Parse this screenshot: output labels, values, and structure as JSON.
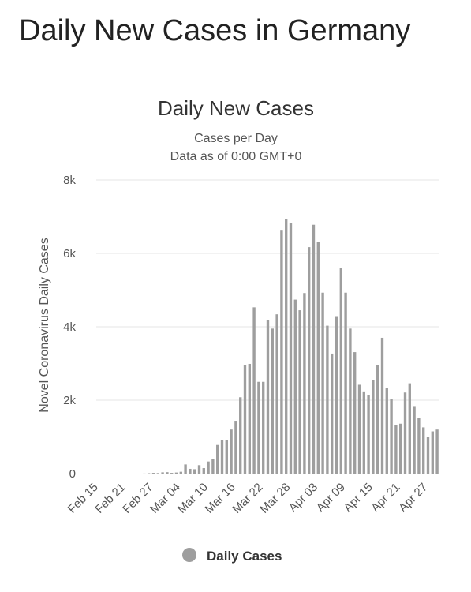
{
  "page": {
    "title": "Daily New Cases in Germany"
  },
  "chart_data": {
    "type": "bar",
    "title": "Daily New Cases",
    "subtitle": "Cases per Day",
    "subtitle2": "Data as of 0:00 GMT+0",
    "ylabel": "Novel Coronavirus Daily Cases",
    "xlabel": "",
    "ylim": [
      0,
      8000
    ],
    "yticks": [
      0,
      2000,
      4000,
      6000,
      8000
    ],
    "ytick_labels": [
      "0",
      "2k",
      "4k",
      "6k",
      "8k"
    ],
    "xtick_labels": [
      "Feb 15",
      "Feb 21",
      "Feb 27",
      "Mar 04",
      "Mar 10",
      "Mar 16",
      "Mar 22",
      "Mar 28",
      "Apr 03",
      "Apr 09",
      "Apr 15",
      "Apr 21",
      "Apr 27"
    ],
    "xtick_every": 6,
    "grid": true,
    "legend_position": "bottom-center",
    "colors": {
      "bar": "#9e9e9e",
      "grid": "#e6e6e6",
      "axis": "#ccd6eb"
    },
    "series": [
      {
        "name": "Daily Cases",
        "categories": [
          "Feb 15",
          "Feb 16",
          "Feb 17",
          "Feb 18",
          "Feb 19",
          "Feb 20",
          "Feb 21",
          "Feb 22",
          "Feb 23",
          "Feb 24",
          "Feb 25",
          "Feb 26",
          "Feb 27",
          "Feb 28",
          "Feb 29",
          "Mar 01",
          "Mar 02",
          "Mar 03",
          "Mar 04",
          "Mar 05",
          "Mar 06",
          "Mar 07",
          "Mar 08",
          "Mar 09",
          "Mar 10",
          "Mar 11",
          "Mar 12",
          "Mar 13",
          "Mar 14",
          "Mar 15",
          "Mar 16",
          "Mar 17",
          "Mar 18",
          "Mar 19",
          "Mar 20",
          "Mar 21",
          "Mar 22",
          "Mar 23",
          "Mar 24",
          "Mar 25",
          "Mar 26",
          "Mar 27",
          "Mar 28",
          "Mar 29",
          "Mar 30",
          "Mar 31",
          "Apr 01",
          "Apr 02",
          "Apr 03",
          "Apr 04",
          "Apr 05",
          "Apr 06",
          "Apr 07",
          "Apr 08",
          "Apr 09",
          "Apr 10",
          "Apr 11",
          "Apr 12",
          "Apr 13",
          "Apr 14",
          "Apr 15",
          "Apr 16",
          "Apr 17",
          "Apr 18",
          "Apr 19",
          "Apr 20",
          "Apr 21",
          "Apr 22",
          "Apr 23",
          "Apr 24",
          "Apr 25",
          "Apr 26",
          "Apr 27",
          "Apr 28",
          "Apr 29"
        ],
        "values": [
          0,
          0,
          0,
          0,
          0,
          0,
          0,
          0,
          0,
          0,
          2,
          10,
          20,
          15,
          35,
          40,
          20,
          30,
          50,
          250,
          130,
          120,
          230,
          150,
          330,
          390,
          780,
          910,
          910,
          1200,
          1440,
          2080,
          2960,
          2990,
          4530,
          2500,
          2500,
          4180,
          3950,
          4340,
          6620,
          6930,
          6820,
          4740,
          4450,
          4920,
          6170,
          6780,
          6320,
          4930,
          4030,
          3270,
          4290,
          5600,
          4930,
          3950,
          3310,
          2420,
          2240,
          2140,
          2540,
          2950,
          3700,
          2340,
          2040,
          1320,
          1360,
          2210,
          2460,
          1840,
          1510,
          1260,
          990,
          1150,
          1200
        ]
      }
    ]
  }
}
